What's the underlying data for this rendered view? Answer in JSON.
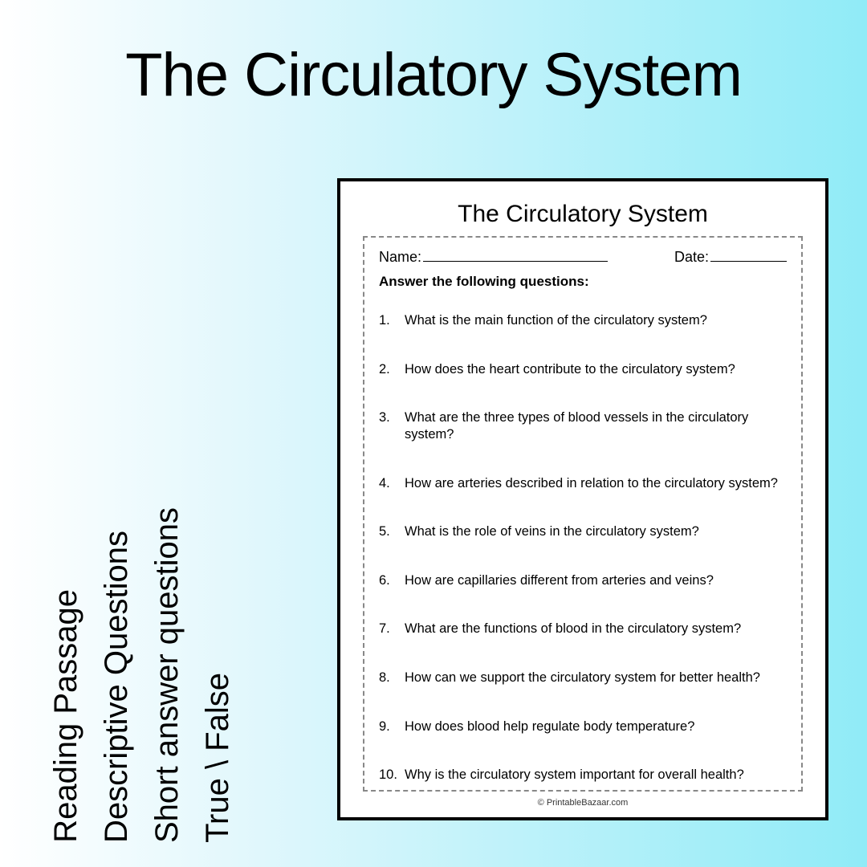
{
  "title": "The Circulatory System",
  "vertical_labels": [
    "Reading Passage",
    "Descriptive Questions",
    "Short answer questions",
    "True \\ False"
  ],
  "worksheet": {
    "title": "The Circulatory System",
    "name_label": "Name:",
    "date_label": "Date:",
    "instruction": "Answer the following questions:",
    "questions": [
      {
        "n": "1.",
        "t": "What is the main function of the circulatory system?"
      },
      {
        "n": "2.",
        "t": "How does the heart contribute to the circulatory system?"
      },
      {
        "n": "3.",
        "t": "What are the three types of blood vessels in the circulatory system?"
      },
      {
        "n": "4.",
        "t": "How are arteries described in relation to the circulatory system?"
      },
      {
        "n": "5.",
        "t": "What is the role of veins in the circulatory system?"
      },
      {
        "n": "6.",
        "t": "How are capillaries different from arteries and veins?"
      },
      {
        "n": "7.",
        "t": "What are the functions of blood in the circulatory system?"
      },
      {
        "n": "8.",
        "t": "How can we support the circulatory system for better health?"
      },
      {
        "n": "9.",
        "t": "How does blood help regulate body temperature?"
      },
      {
        "n": "10.",
        "t": "Why is the circulatory system important for overall health?"
      }
    ],
    "copyright": "© PrintableBazaar.com"
  },
  "styling": {
    "background_gradient": [
      "#ffffff",
      "#e0f7fc",
      "#90ebf7"
    ],
    "title_color": "#000000",
    "title_fontsize": 76,
    "vlabel_fontsize": 40,
    "worksheet_border_color": "#000000",
    "worksheet_bg": "#ffffff",
    "dashed_border_color": "#888888",
    "body_font": "Arial"
  }
}
